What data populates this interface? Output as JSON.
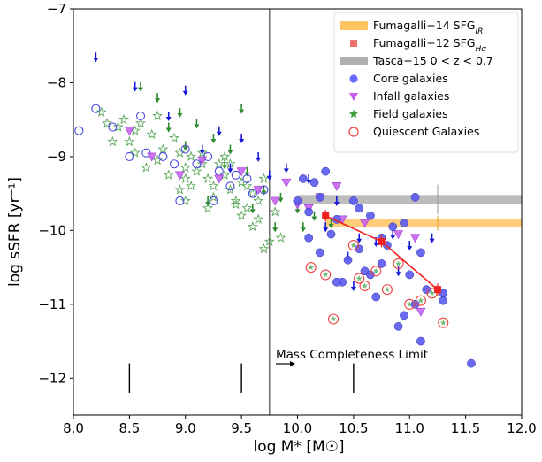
{
  "chart_data": {
    "type": "scatter",
    "xlabel": "log M* [M☉]",
    "ylabel": "log sSFR [yr⁻¹]",
    "xlim": [
      8.0,
      12.0
    ],
    "ylim": [
      -12.5,
      -7.0
    ],
    "xticks": [
      "8.0",
      "8.5",
      "9.0",
      "9.5",
      "10.0",
      "10.5",
      "11.0",
      "11.5",
      "12.0"
    ],
    "yticks": [
      "−7",
      "−8",
      "−9",
      "−10",
      "−11",
      "−12"
    ],
    "grid": false,
    "legend_position": "top-right",
    "legend": [
      {
        "label": "Fumagalli+14 SFG",
        "sub": "IR",
        "marker": "band",
        "color": "#ffc462"
      },
      {
        "label": "Fumagalli+12 SFG",
        "sub": "Hα",
        "marker": "square",
        "color": "#f07070"
      },
      {
        "label": "Tasca+15 0 < z < 0.7",
        "sub": "",
        "marker": "band",
        "color": "#b0b0b0"
      },
      {
        "label": "Core galaxies",
        "sub": "",
        "marker": "circle",
        "color": "#6a6aff"
      },
      {
        "label": "Infall galaxies",
        "sub": "",
        "marker": "triangle",
        "color": "#c45cf0"
      },
      {
        "label": "Field galaxies",
        "sub": "",
        "marker": "star",
        "color": "#3a9a3a"
      },
      {
        "label": "Quiescent Galaxies",
        "sub": "",
        "marker": "ring",
        "color": "#f04040"
      }
    ],
    "annotation": "Mass Completeness Limit",
    "completeness_limit_x": 9.75,
    "error_bars_y": {
      "x": [
        8.5,
        9.5,
        10.5
      ],
      "center": -12.0,
      "half": 0.2
    },
    "fumagalli14_band": {
      "x": [
        10.25,
        12.0
      ],
      "y": -9.9,
      "half_width": 0.05,
      "color": "#ffc462"
    },
    "tasca15_band": {
      "x": [
        10.0,
        12.0
      ],
      "y": -9.58,
      "half_width": 0.06,
      "color": "#b0b0b0"
    },
    "tasca15_point": {
      "x": 11.25,
      "y": -9.58,
      "yerr": 0.2
    },
    "fumagalli14_point": {
      "x": 11.25,
      "y": -9.9,
      "yerr": 0.1
    },
    "fumagalli12_series": {
      "x": [
        10.25,
        10.75,
        11.25
      ],
      "y": [
        -9.8,
        -10.15,
        -10.8
      ],
      "yerr": [
        0.08,
        0.08,
        0.08
      ],
      "color": "#f02020"
    },
    "series": [
      {
        "name": "Core galaxies",
        "marker": "circle",
        "x": [
          10.0,
          10.1,
          10.2,
          10.35,
          10.55,
          10.65,
          10.75,
          10.85,
          10.95,
          11.1,
          10.3,
          10.45,
          10.6,
          10.8,
          11.0,
          11.15,
          11.3,
          10.2,
          10.4,
          10.7,
          10.9,
          11.05,
          10.15,
          10.5,
          10.25,
          10.05,
          11.55,
          10.95,
          11.1,
          10.35,
          10.75,
          11.3,
          10.55,
          11.05,
          10.1,
          10.65
        ],
        "y": [
          -9.6,
          -9.75,
          -9.55,
          -9.85,
          -9.7,
          -9.8,
          -10.1,
          -9.95,
          -9.9,
          -10.3,
          -10.05,
          -10.4,
          -10.55,
          -10.2,
          -10.6,
          -10.8,
          -10.95,
          -10.3,
          -10.7,
          -10.9,
          -11.3,
          -11.0,
          -9.35,
          -9.6,
          -9.2,
          -9.3,
          -11.8,
          -11.15,
          -11.5,
          -10.7,
          -10.45,
          -10.85,
          -10.25,
          -9.55,
          -10.1,
          -10.6
        ]
      },
      {
        "name": "Core galaxies (upper limits)",
        "marker": "open-circle",
        "x": [
          8.05,
          8.2,
          8.35,
          8.5,
          8.65,
          8.8,
          8.9,
          9.0,
          9.1,
          9.2,
          9.3,
          9.45,
          9.6,
          9.4,
          9.7,
          8.6,
          8.95,
          9.25,
          9.55
        ],
        "y": [
          -8.65,
          -8.35,
          -8.6,
          -9.0,
          -8.95,
          -9.0,
          -9.1,
          -8.9,
          -9.1,
          -9.0,
          -9.2,
          -9.25,
          -9.5,
          -9.4,
          -9.45,
          -8.45,
          -9.6,
          -9.6,
          -9.3
        ]
      },
      {
        "name": "Infall galaxies",
        "marker": "triangle",
        "x": [
          8.5,
          8.7,
          8.95,
          9.15,
          9.3,
          9.5,
          9.65,
          9.8,
          10.1,
          10.2,
          10.35,
          10.4,
          10.6,
          11.05,
          11.1,
          10.9,
          9.9,
          10.0
        ],
        "y": [
          -8.65,
          -9.0,
          -9.25,
          -9.05,
          -9.3,
          -9.2,
          -9.45,
          -9.6,
          -9.7,
          -9.55,
          -9.4,
          -9.85,
          -9.9,
          -10.1,
          -11.1,
          -10.05,
          -9.35,
          -9.65
        ]
      },
      {
        "name": "Field galaxies",
        "marker": "star",
        "x": [
          8.25,
          8.3,
          8.4,
          8.5,
          8.55,
          8.6,
          8.7,
          8.75,
          8.8,
          8.9,
          8.95,
          9.0,
          9.05,
          9.1,
          9.15,
          9.2,
          9.25,
          9.3,
          9.35,
          9.4,
          9.45,
          9.5,
          9.55,
          9.6,
          9.65,
          9.7,
          8.45,
          8.65,
          8.85,
          9.05,
          9.25,
          9.45,
          9.65,
          8.35,
          9.0,
          9.35,
          9.6,
          9.75,
          9.85,
          9.5,
          9.2,
          8.95,
          9.4,
          9.15,
          9.55,
          9.7,
          9.8,
          8.55,
          8.75,
          9.0
        ],
        "y": [
          -8.4,
          -8.55,
          -8.6,
          -8.8,
          -8.95,
          -8.55,
          -8.7,
          -9.05,
          -8.9,
          -8.75,
          -8.95,
          -9.15,
          -9.0,
          -9.2,
          -9.1,
          -9.3,
          -9.4,
          -9.1,
          -9.25,
          -9.45,
          -9.6,
          -9.35,
          -9.7,
          -9.5,
          -9.6,
          -9.3,
          -8.5,
          -9.15,
          -9.25,
          -9.4,
          -9.55,
          -9.65,
          -9.85,
          -8.8,
          -9.6,
          -9.0,
          -9.95,
          -10.15,
          -10.1,
          -9.8,
          -9.7,
          -9.45,
          -9.1,
          -8.95,
          -9.4,
          -10.25,
          -9.75,
          -8.65,
          -8.45,
          -9.3
        ]
      },
      {
        "name": "Field galaxies (upper limits)",
        "marker": "arrow",
        "x": [
          8.6,
          8.75,
          8.95,
          9.1,
          9.25,
          9.4,
          9.55,
          9.7,
          9.85,
          10.0,
          10.15,
          10.3,
          9.0,
          9.35,
          9.6,
          9.8,
          10.05,
          8.85,
          9.2,
          9.5
        ],
        "y": [
          -8.05,
          -8.2,
          -8.4,
          -8.55,
          -8.75,
          -8.9,
          -9.2,
          -9.45,
          -9.55,
          -9.7,
          -9.8,
          -9.9,
          -8.85,
          -9.1,
          -9.7,
          -9.95,
          -9.95,
          -8.6,
          -9.6,
          -8.35
        ]
      },
      {
        "name": "Core galaxies (arrows)",
        "marker": "arrow-blue",
        "x": [
          8.2,
          8.55,
          8.85,
          9.0,
          9.3,
          9.5,
          9.65,
          9.9,
          10.1,
          10.35,
          10.55,
          10.7,
          10.85,
          11.0,
          11.2,
          9.75,
          10.25,
          10.5,
          9.4,
          9.15,
          10.9,
          10.45
        ],
        "y": [
          -7.65,
          -8.05,
          -8.45,
          -8.1,
          -8.65,
          -8.75,
          -9.0,
          -9.15,
          -9.3,
          -9.6,
          -10.1,
          -10.15,
          -10.05,
          -10.2,
          -10.1,
          -9.25,
          -9.95,
          -10.75,
          -9.15,
          -8.9,
          -10.55,
          -10.35
        ]
      },
      {
        "name": "Quiescent Galaxies",
        "marker": "ring",
        "x": [
          10.12,
          10.32,
          10.55,
          10.7,
          10.9,
          11.1,
          11.2,
          11.3,
          10.25,
          10.5,
          10.8,
          11.0,
          10.6
        ],
        "y": [
          -10.5,
          -11.2,
          -10.65,
          -10.55,
          -10.45,
          -10.95,
          -10.85,
          -11.25,
          -10.6,
          -10.2,
          -10.8,
          -11.0,
          -10.75
        ]
      }
    ]
  }
}
